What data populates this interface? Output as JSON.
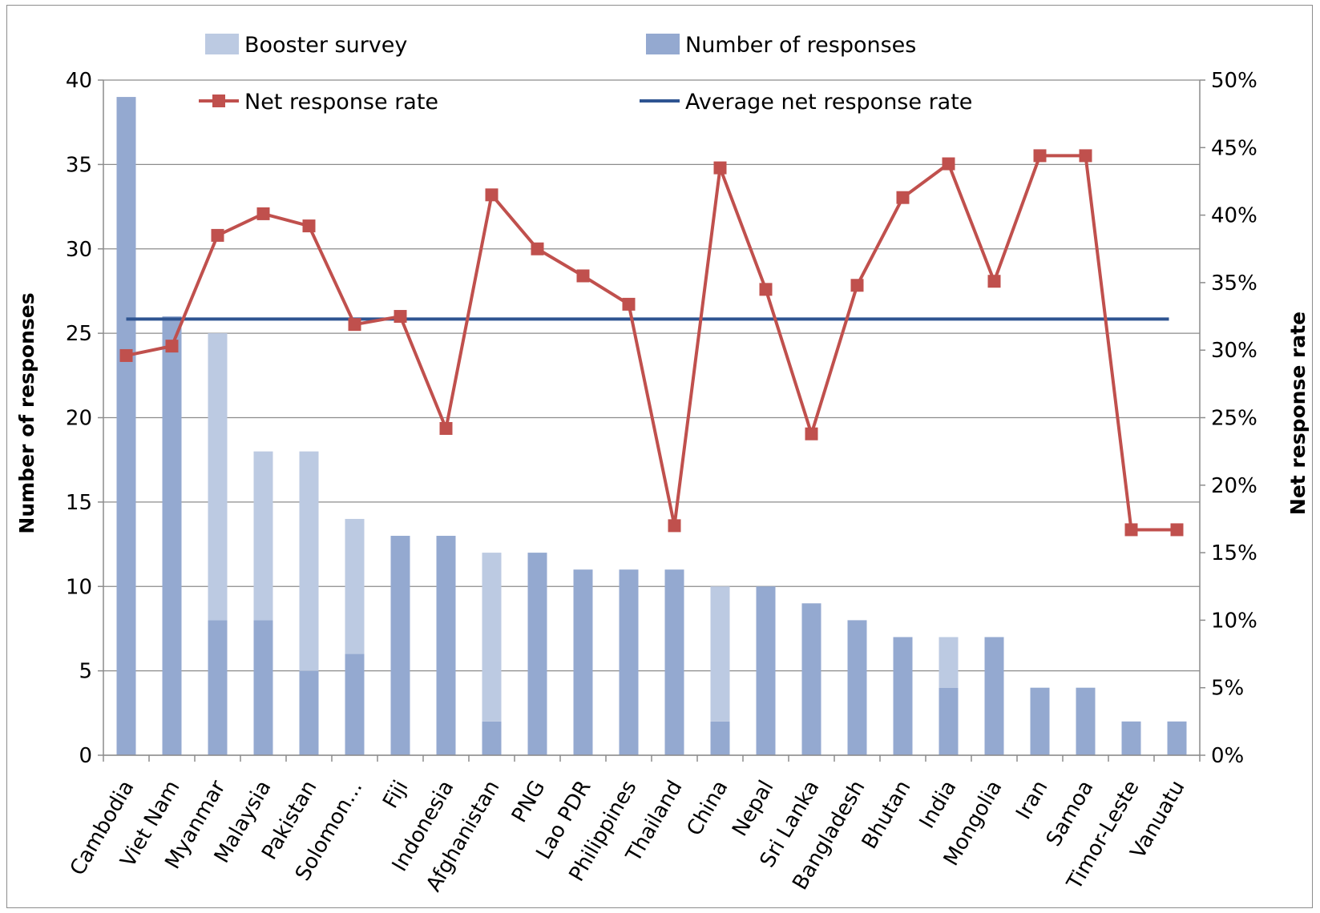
{
  "chart_data": {
    "type": "bar",
    "title": "",
    "categories": [
      "Cambodia",
      "Viet Nam",
      "Myanmar",
      "Malaysia",
      "Pakistan",
      "Solomon…",
      "Fiji",
      "Indonesia",
      "Afghanistan",
      "PNG",
      "Lao PDR",
      "Philippines",
      "Thailand",
      "China",
      "Nepal",
      "Sri Lanka",
      "Bangladesh",
      "Bhutan",
      "India",
      "Mongolia",
      "Iran",
      "Samoa",
      "Timor-Leste",
      "Vanuatu"
    ],
    "ylabel": "Number of responses",
    "y2label": "Net response rate",
    "ylim": [
      0,
      40
    ],
    "y2lim": [
      0,
      0.5
    ],
    "yticks": [
      "0",
      "5",
      "10",
      "15",
      "20",
      "25",
      "30",
      "35",
      "40"
    ],
    "y2ticks": [
      "0%",
      "5%",
      "10%",
      "15%",
      "20%",
      "25%",
      "30%",
      "35%",
      "40%",
      "45%",
      "50%"
    ],
    "series": [
      {
        "name": "Number of responses",
        "kind": "bar-stacked",
        "color": "#94a9d0",
        "values": [
          39,
          26,
          8,
          8,
          5,
          6,
          13,
          13,
          2,
          12,
          11,
          11,
          11,
          2,
          10,
          9,
          8,
          7,
          4,
          7,
          4,
          4,
          2,
          2
        ]
      },
      {
        "name": "Booster survey",
        "kind": "bar-stacked",
        "color": "#bccae2",
        "values": [
          0,
          0,
          17,
          10,
          13,
          8,
          0,
          0,
          10,
          0,
          0,
          0,
          0,
          8,
          0,
          0,
          0,
          0,
          3,
          0,
          0,
          0,
          0,
          0
        ]
      },
      {
        "name": "Net response rate",
        "kind": "line",
        "axis": "right",
        "color": "#c0504d",
        "marker": "square",
        "values": [
          0.296,
          0.303,
          0.385,
          0.401,
          0.392,
          0.319,
          0.325,
          0.242,
          0.415,
          0.375,
          0.355,
          0.334,
          0.17,
          0.435,
          0.345,
          0.238,
          0.348,
          0.413,
          0.438,
          0.351,
          0.444,
          0.444,
          0.167,
          0.167
        ]
      },
      {
        "name": "Average net response rate",
        "kind": "line",
        "axis": "right",
        "color": "#2e5491",
        "value": 0.323
      }
    ],
    "legend": {
      "placement": "top",
      "columns": 2
    }
  }
}
